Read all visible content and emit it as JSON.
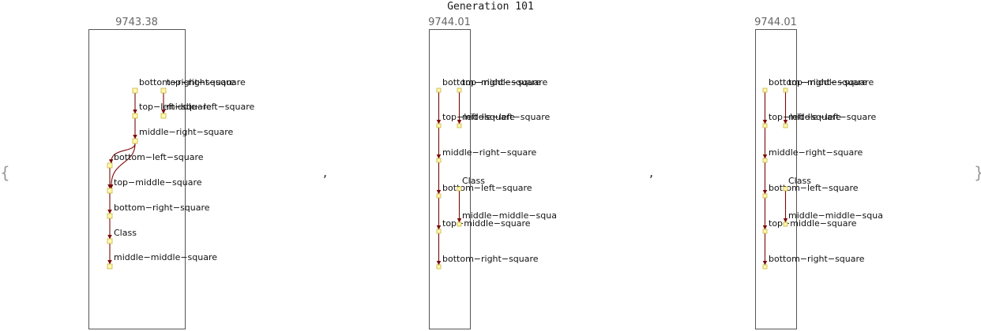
{
  "title": "Generation 101",
  "braces": {
    "open": "{",
    "close": "}"
  },
  "separator": ",",
  "colors": {
    "edge": "#7a0a0a",
    "node_fill": "#fff8b0",
    "node_stroke": "#c9b43a",
    "frame": "#555555"
  },
  "panels": [
    {
      "score": "9743.38",
      "nodes": [
        {
          "id": "n1",
          "label": "bottom−right−square"
        },
        {
          "id": "n2",
          "label": "top−right−square"
        },
        {
          "id": "n3",
          "label": "top−left−square"
        },
        {
          "id": "n4",
          "label": "middle−left−square"
        },
        {
          "id": "n5",
          "label": "middle−right−square"
        },
        {
          "id": "n6",
          "label": "bottom−left−square"
        },
        {
          "id": "n7",
          "label": "top−middle−square"
        },
        {
          "id": "n8",
          "label": "bottom−right−square"
        },
        {
          "id": "n9",
          "label": "Class"
        },
        {
          "id": "n10",
          "label": "middle−middle−square"
        }
      ],
      "edges": [
        [
          "n1",
          "n3"
        ],
        [
          "n2",
          "n4"
        ],
        [
          "n3",
          "n5"
        ],
        [
          "n5",
          "n6"
        ],
        [
          "n5",
          "n7"
        ],
        [
          "n6",
          "n7"
        ],
        [
          "n7",
          "n8"
        ],
        [
          "n8",
          "n9"
        ],
        [
          "n9",
          "n10"
        ]
      ]
    },
    {
      "score": "9744.01",
      "nodes": [
        {
          "id": "m1",
          "label": "bottom−middle−square"
        },
        {
          "id": "m2",
          "label": "top−right−square"
        },
        {
          "id": "m3",
          "label": "top−left−square"
        },
        {
          "id": "m4",
          "label": "middle−left−square"
        },
        {
          "id": "m5",
          "label": "middle−right−square"
        },
        {
          "id": "m6",
          "label": "bottom−left−square"
        },
        {
          "id": "m7",
          "label": "Class"
        },
        {
          "id": "m8",
          "label": "top−middle−square"
        },
        {
          "id": "m9",
          "label": "middle−middle−squa"
        },
        {
          "id": "m10",
          "label": "bottom−right−square"
        }
      ],
      "edges": [
        [
          "m1",
          "m3"
        ],
        [
          "m2",
          "m4"
        ],
        [
          "m3",
          "m5"
        ],
        [
          "m5",
          "m6"
        ],
        [
          "m6",
          "m8"
        ],
        [
          "m7",
          "m9"
        ],
        [
          "m8",
          "m10"
        ]
      ]
    },
    {
      "score": "9744.01",
      "nodes": [
        {
          "id": "k1",
          "label": "bottom−middle−square"
        },
        {
          "id": "k2",
          "label": "top−right−square"
        },
        {
          "id": "k3",
          "label": "top−left−square"
        },
        {
          "id": "k4",
          "label": "middle−left−square"
        },
        {
          "id": "k5",
          "label": "middle−right−square"
        },
        {
          "id": "k6",
          "label": "bottom−left−square"
        },
        {
          "id": "k7",
          "label": "Class"
        },
        {
          "id": "k8",
          "label": "top−middle−square"
        },
        {
          "id": "k9",
          "label": "middle−middle−squa"
        },
        {
          "id": "k10",
          "label": "bottom−right−square"
        }
      ],
      "edges": [
        [
          "k1",
          "k3"
        ],
        [
          "k2",
          "k4"
        ],
        [
          "k3",
          "k5"
        ],
        [
          "k5",
          "k6"
        ],
        [
          "k6",
          "k8"
        ],
        [
          "k7",
          "k9"
        ],
        [
          "k8",
          "k10"
        ]
      ]
    }
  ]
}
